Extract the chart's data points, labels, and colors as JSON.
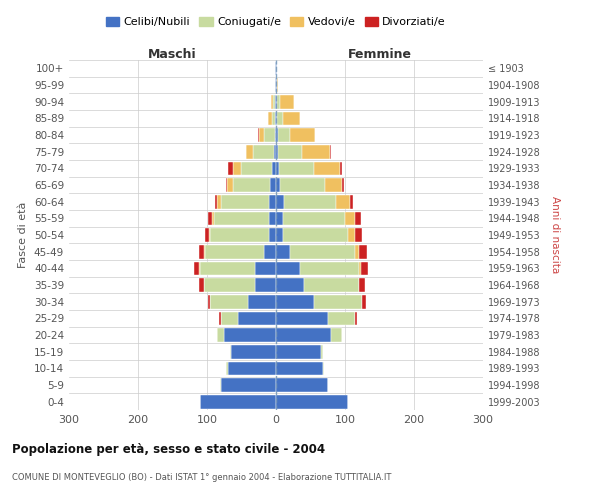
{
  "age_groups": [
    "0-4",
    "5-9",
    "10-14",
    "15-19",
    "20-24",
    "25-29",
    "30-34",
    "35-39",
    "40-44",
    "45-49",
    "50-54",
    "55-59",
    "60-64",
    "65-69",
    "70-74",
    "75-79",
    "80-84",
    "85-89",
    "90-94",
    "95-99",
    "100+"
  ],
  "birth_years": [
    "1999-2003",
    "1994-1998",
    "1989-1993",
    "1984-1988",
    "1979-1983",
    "1974-1978",
    "1969-1973",
    "1964-1968",
    "1959-1963",
    "1954-1958",
    "1949-1953",
    "1944-1948",
    "1939-1943",
    "1934-1938",
    "1929-1933",
    "1924-1928",
    "1919-1923",
    "1914-1918",
    "1909-1913",
    "1904-1908",
    "≤ 1903"
  ],
  "colors": {
    "celibi": "#4472c4",
    "coniugati": "#c8dba0",
    "vedovi": "#f0c060",
    "divorziati": "#cc2222"
  },
  "maschi": {
    "celibi": [
      110,
      80,
      70,
      65,
      75,
      55,
      40,
      30,
      30,
      18,
      10,
      10,
      10,
      8,
      6,
      3,
      2,
      1,
      1,
      1,
      1
    ],
    "coniugati": [
      0,
      1,
      2,
      2,
      10,
      25,
      55,
      75,
      80,
      85,
      85,
      80,
      70,
      55,
      45,
      30,
      15,
      5,
      3,
      0,
      0
    ],
    "vedovi": [
      0,
      0,
      0,
      0,
      0,
      0,
      0,
      0,
      1,
      1,
      2,
      3,
      5,
      8,
      12,
      10,
      8,
      5,
      3,
      0,
      0
    ],
    "divorziati": [
      0,
      0,
      0,
      0,
      1,
      2,
      3,
      6,
      8,
      8,
      6,
      6,
      3,
      2,
      7,
      1,
      1,
      0,
      0,
      0,
      0
    ]
  },
  "femmine": {
    "celibi": [
      105,
      75,
      68,
      65,
      80,
      75,
      55,
      40,
      35,
      20,
      10,
      10,
      12,
      6,
      5,
      3,
      3,
      2,
      1,
      1,
      1
    ],
    "coniugati": [
      0,
      1,
      2,
      3,
      15,
      40,
      70,
      80,
      85,
      95,
      95,
      90,
      75,
      65,
      50,
      35,
      18,
      8,
      5,
      0,
      0
    ],
    "vedovi": [
      0,
      0,
      0,
      0,
      0,
      0,
      0,
      1,
      3,
      5,
      10,
      15,
      20,
      25,
      38,
      40,
      35,
      25,
      20,
      2,
      0
    ],
    "divorziati": [
      0,
      0,
      0,
      0,
      1,
      2,
      5,
      8,
      10,
      12,
      10,
      8,
      5,
      3,
      2,
      1,
      1,
      0,
      0,
      0,
      0
    ]
  },
  "title": "Popolazione per età, sesso e stato civile - 2004",
  "subtitle": "COMUNE DI MONTEVEGLIO (BO) - Dati ISTAT 1° gennaio 2004 - Elaborazione TUTTITALIA.IT",
  "ylabel_left": "Fasce di età",
  "ylabel_right": "Anni di nascita",
  "xlabel_left": "Maschi",
  "xlabel_right": "Femmine",
  "xlim": 300,
  "legend_labels": [
    "Celibi/Nubili",
    "Coniugati/e",
    "Vedovi/e",
    "Divorziati/e"
  ],
  "background_color": "#ffffff"
}
